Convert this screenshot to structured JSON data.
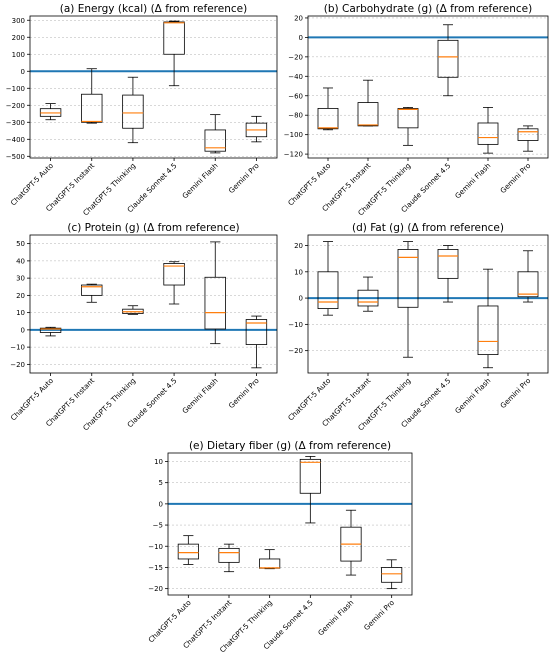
{
  "chart_data": [
    {
      "type": "box",
      "title": "(a) Energy (kcal) (Δ from reference)",
      "categories": [
        "ChatGPT-5 Auto",
        "ChatGPT-5 Instant",
        "ChatGPT-5 Thinking",
        "Claude Sonnet 4.5",
        "Gemini Flash",
        "Gemini Pro"
      ],
      "boxes": [
        {
          "whisker_low": -285,
          "q1": -265,
          "median": -245,
          "q3": -220,
          "whisker_high": -190
        },
        {
          "whisker_low": -305,
          "q1": -300,
          "median": -295,
          "q3": -135,
          "whisker_high": 15
        },
        {
          "whisker_low": -420,
          "q1": -335,
          "median": -245,
          "q3": -140,
          "whisker_high": -35
        },
        {
          "whisker_low": -85,
          "q1": 100,
          "median": 285,
          "q3": 290,
          "whisker_high": 295
        },
        {
          "whisker_low": -480,
          "q1": -470,
          "median": -450,
          "q3": -345,
          "whisker_high": -255
        },
        {
          "whisker_low": -415,
          "q1": -385,
          "median": -345,
          "q3": -305,
          "whisker_high": -265
        }
      ],
      "reference_line": 0,
      "ylim": [
        -510,
        325
      ],
      "yticks": [
        -500,
        -400,
        -300,
        -200,
        -100,
        0,
        100,
        200,
        300
      ],
      "grid": "y"
    },
    {
      "type": "box",
      "title": "(b) Carbohydrate (g) (Δ from reference)",
      "categories": [
        "ChatGPT-5 Auto",
        "ChatGPT-5 Instant",
        "ChatGPT-5 Thinking",
        "Claude Sonnet 4.5",
        "Gemini Flash",
        "Gemini Pro"
      ],
      "boxes": [
        {
          "whisker_low": -95,
          "q1": -94,
          "median": -93,
          "q3": -73,
          "whisker_high": -52
        },
        {
          "whisker_low": -91,
          "q1": -91,
          "median": -90,
          "q3": -67,
          "whisker_high": -44
        },
        {
          "whisker_low": -111,
          "q1": -93,
          "median": -74,
          "q3": -73,
          "whisker_high": -72
        },
        {
          "whisker_low": -60,
          "q1": -41,
          "median": -20,
          "q3": -3,
          "whisker_high": 13
        },
        {
          "whisker_low": -119,
          "q1": -110,
          "median": -103,
          "q3": -88,
          "whisker_high": -72
        },
        {
          "whisker_low": -117,
          "q1": -106,
          "median": -97,
          "q3": -94,
          "whisker_high": -91
        }
      ],
      "reference_line": 0,
      "ylim": [
        -124,
        22
      ],
      "yticks": [
        -120,
        -100,
        -80,
        -60,
        -40,
        -20,
        0,
        20
      ],
      "grid": "y"
    },
    {
      "type": "box",
      "title": "(c) Protein (g) (Δ from reference)",
      "categories": [
        "ChatGPT-5 Auto",
        "ChatGPT-5 Instant",
        "ChatGPT-5 Thinking",
        "Claude Sonnet 4.5",
        "Gemini Flash",
        "Gemini Pro"
      ],
      "boxes": [
        {
          "whisker_low": -3.5,
          "q1": -1.5,
          "median": 0.5,
          "q3": 1,
          "whisker_high": 1.5
        },
        {
          "whisker_low": 16,
          "q1": 20,
          "median": 25,
          "q3": 26,
          "whisker_high": 26.5
        },
        {
          "whisker_low": 9,
          "q1": 9.5,
          "median": 10.5,
          "q3": 12,
          "whisker_high": 14
        },
        {
          "whisker_low": 15,
          "q1": 26,
          "median": 37,
          "q3": 38.5,
          "whisker_high": 39.5
        },
        {
          "whisker_low": -8,
          "q1": 0.5,
          "median": 10,
          "q3": 30.5,
          "whisker_high": 51
        },
        {
          "whisker_low": -22,
          "q1": -8.5,
          "median": 4,
          "q3": 6,
          "whisker_high": 8
        }
      ],
      "reference_line": 0,
      "ylim": [
        -25,
        55
      ],
      "yticks": [
        -20,
        -10,
        0,
        10,
        20,
        30,
        40,
        50
      ],
      "grid": "y"
    },
    {
      "type": "box",
      "title": "(d) Fat (g) (Δ from reference)",
      "categories": [
        "ChatGPT-5 Auto",
        "ChatGPT-5 Instant",
        "ChatGPT-5 Thinking",
        "Claude Sonnet 4.5",
        "Gemini Flash",
        "Gemini Pro"
      ],
      "boxes": [
        {
          "whisker_low": -6.5,
          "q1": -4,
          "median": -1.5,
          "q3": 10,
          "whisker_high": 21.5
        },
        {
          "whisker_low": -5,
          "q1": -3,
          "median": -1.5,
          "q3": 3,
          "whisker_high": 8
        },
        {
          "whisker_low": -22.5,
          "q1": -3.5,
          "median": 15.5,
          "q3": 18.5,
          "whisker_high": 21.5
        },
        {
          "whisker_low": -1.5,
          "q1": 7.5,
          "median": 16,
          "q3": 18.5,
          "whisker_high": 20
        },
        {
          "whisker_low": -26.5,
          "q1": -21.5,
          "median": -16.5,
          "q3": -3,
          "whisker_high": 11
        },
        {
          "whisker_low": -1.5,
          "q1": 0.5,
          "median": 1.5,
          "q3": 10,
          "whisker_high": 18
        }
      ],
      "reference_line": 0,
      "ylim": [
        -28.5,
        24
      ],
      "yticks": [
        -20,
        -10,
        0,
        10,
        20
      ],
      "grid": "y"
    },
    {
      "type": "box",
      "title": "(e) Dietary fiber (g) (Δ from reference)",
      "categories": [
        "ChatGPT-5 Auto",
        "ChatGPT-5 Instant",
        "ChatGPT-5 Thinking",
        "Claude Sonnet 4.5",
        "Gemini Flash",
        "Gemini Pro"
      ],
      "boxes": [
        {
          "whisker_low": -14.3,
          "q1": -13,
          "median": -11.5,
          "q3": -9.5,
          "whisker_high": -7.5
        },
        {
          "whisker_low": -16,
          "q1": -13.8,
          "median": -11.5,
          "q3": -10.5,
          "whisker_high": -9.5
        },
        {
          "whisker_low": -15.3,
          "q1": -15.2,
          "median": -15.1,
          "q3": -13,
          "whisker_high": -10.8
        },
        {
          "whisker_low": -4.5,
          "q1": 2.5,
          "median": 9.8,
          "q3": 10.5,
          "whisker_high": 11.2
        },
        {
          "whisker_low": -16.8,
          "q1": -13.5,
          "median": -9.5,
          "q3": -5.5,
          "whisker_high": -1.5
        },
        {
          "whisker_low": -20,
          "q1": -18.5,
          "median": -16.5,
          "q3": -15,
          "whisker_high": -13.2
        }
      ],
      "reference_line": 0,
      "ylim": [
        -21.5,
        12
      ],
      "yticks": [
        -20,
        -15,
        -10,
        -5,
        0,
        5,
        10
      ],
      "grid": "y"
    }
  ],
  "colors": {
    "box_edge": "#000000",
    "median": "#ff7f0e",
    "reference_line": "#1f77b4",
    "grid": "#b0b0b0"
  }
}
